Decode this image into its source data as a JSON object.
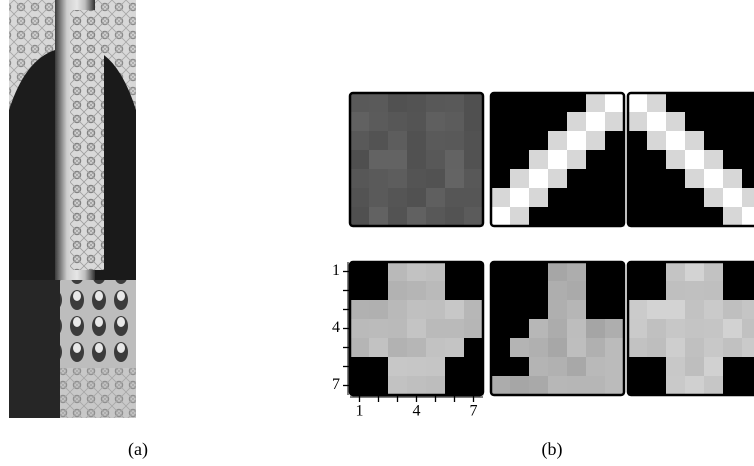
{
  "figure": {
    "panel_a_caption": "(a)",
    "panel_b_caption": "(b)",
    "y_tick_labels": [
      "1",
      "4",
      "7"
    ],
    "x_tick_labels": [
      "1",
      "4",
      "7"
    ]
  }
}
